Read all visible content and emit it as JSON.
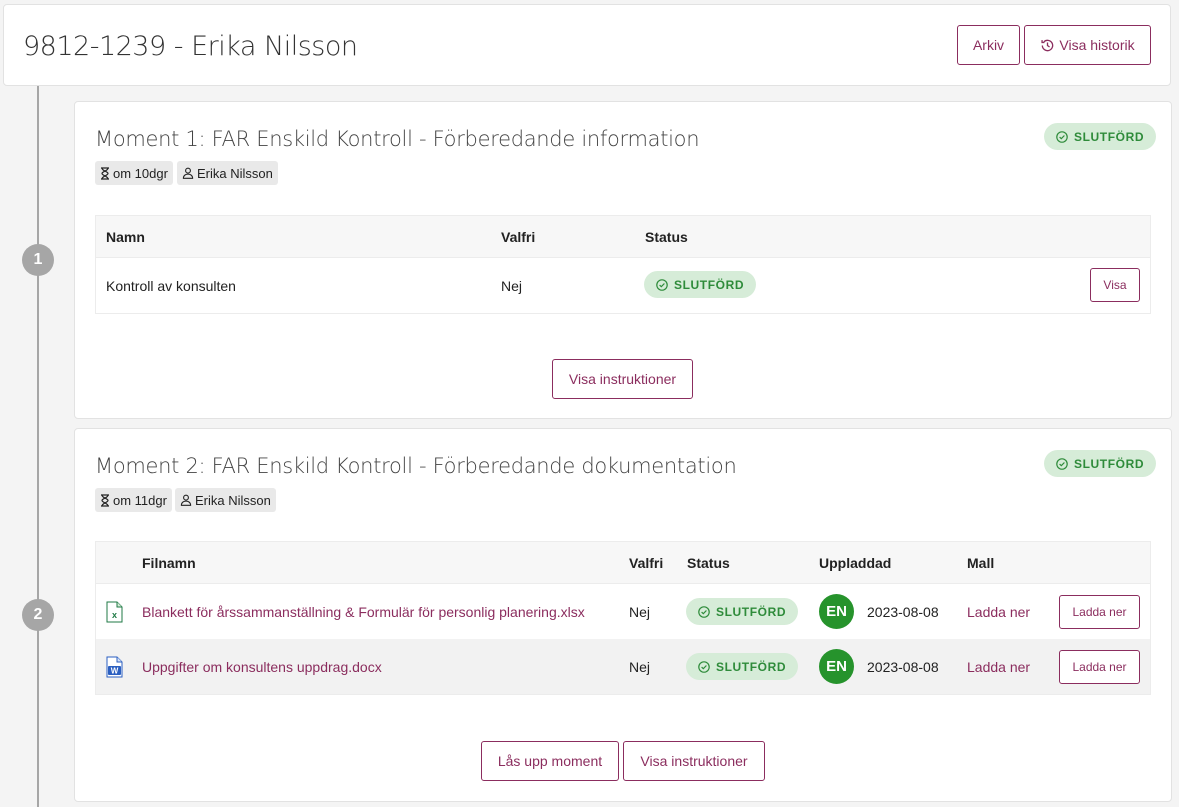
{
  "header": {
    "title": "9812-1239 - Erika Nilsson",
    "archive_label": "Arkiv",
    "history_label": "Visa historik"
  },
  "moment1": {
    "step": "1",
    "title": "Moment 1: FAR Enskild Kontroll - Förberedande information",
    "status": "SLUTFÖRD",
    "due": "om 10dgr",
    "assignee": "Erika Nilsson",
    "columns": [
      "Namn",
      "Valfri",
      "Status"
    ],
    "rows": [
      {
        "name": "Kontroll av konsulten",
        "optional": "Nej",
        "status": "SLUTFÖRD",
        "action": "Visa"
      }
    ],
    "instructions_label": "Visa instruktioner"
  },
  "moment2": {
    "step": "2",
    "title": "Moment 2: FAR Enskild Kontroll - Förberedande dokumentation",
    "status": "SLUTFÖRD",
    "due": "om 11dgr",
    "assignee": "Erika Nilsson",
    "columns": [
      "Filnamn",
      "Valfri",
      "Status",
      "Uppladdad",
      "Mall"
    ],
    "rows": [
      {
        "file_icon": "excel-icon",
        "filename": "Blankett för årssammanställning & Formulär för personlig planering.xlsx",
        "optional": "Nej",
        "status": "SLUTFÖRD",
        "avatar": "EN",
        "uploaded": "2023-08-08",
        "template": "Ladda ner",
        "action": "Ladda ner"
      },
      {
        "file_icon": "word-icon",
        "filename": "Uppgifter om konsultens uppdrag.docx",
        "optional": "Nej",
        "status": "SLUTFÖRD",
        "avatar": "EN",
        "uploaded": "2023-08-08",
        "template": "Ladda ner",
        "action": "Ladda ner"
      }
    ],
    "unlock_label": "Lås upp moment",
    "instructions_label": "Visa instruktioner"
  },
  "colors": {
    "accent": "#8b2d5e",
    "success_bg": "#d6ecd8",
    "success_text": "#2e8b3a",
    "avatar_bg": "#26932c",
    "excel": "#1f7a45",
    "word": "#2b5fc1"
  }
}
